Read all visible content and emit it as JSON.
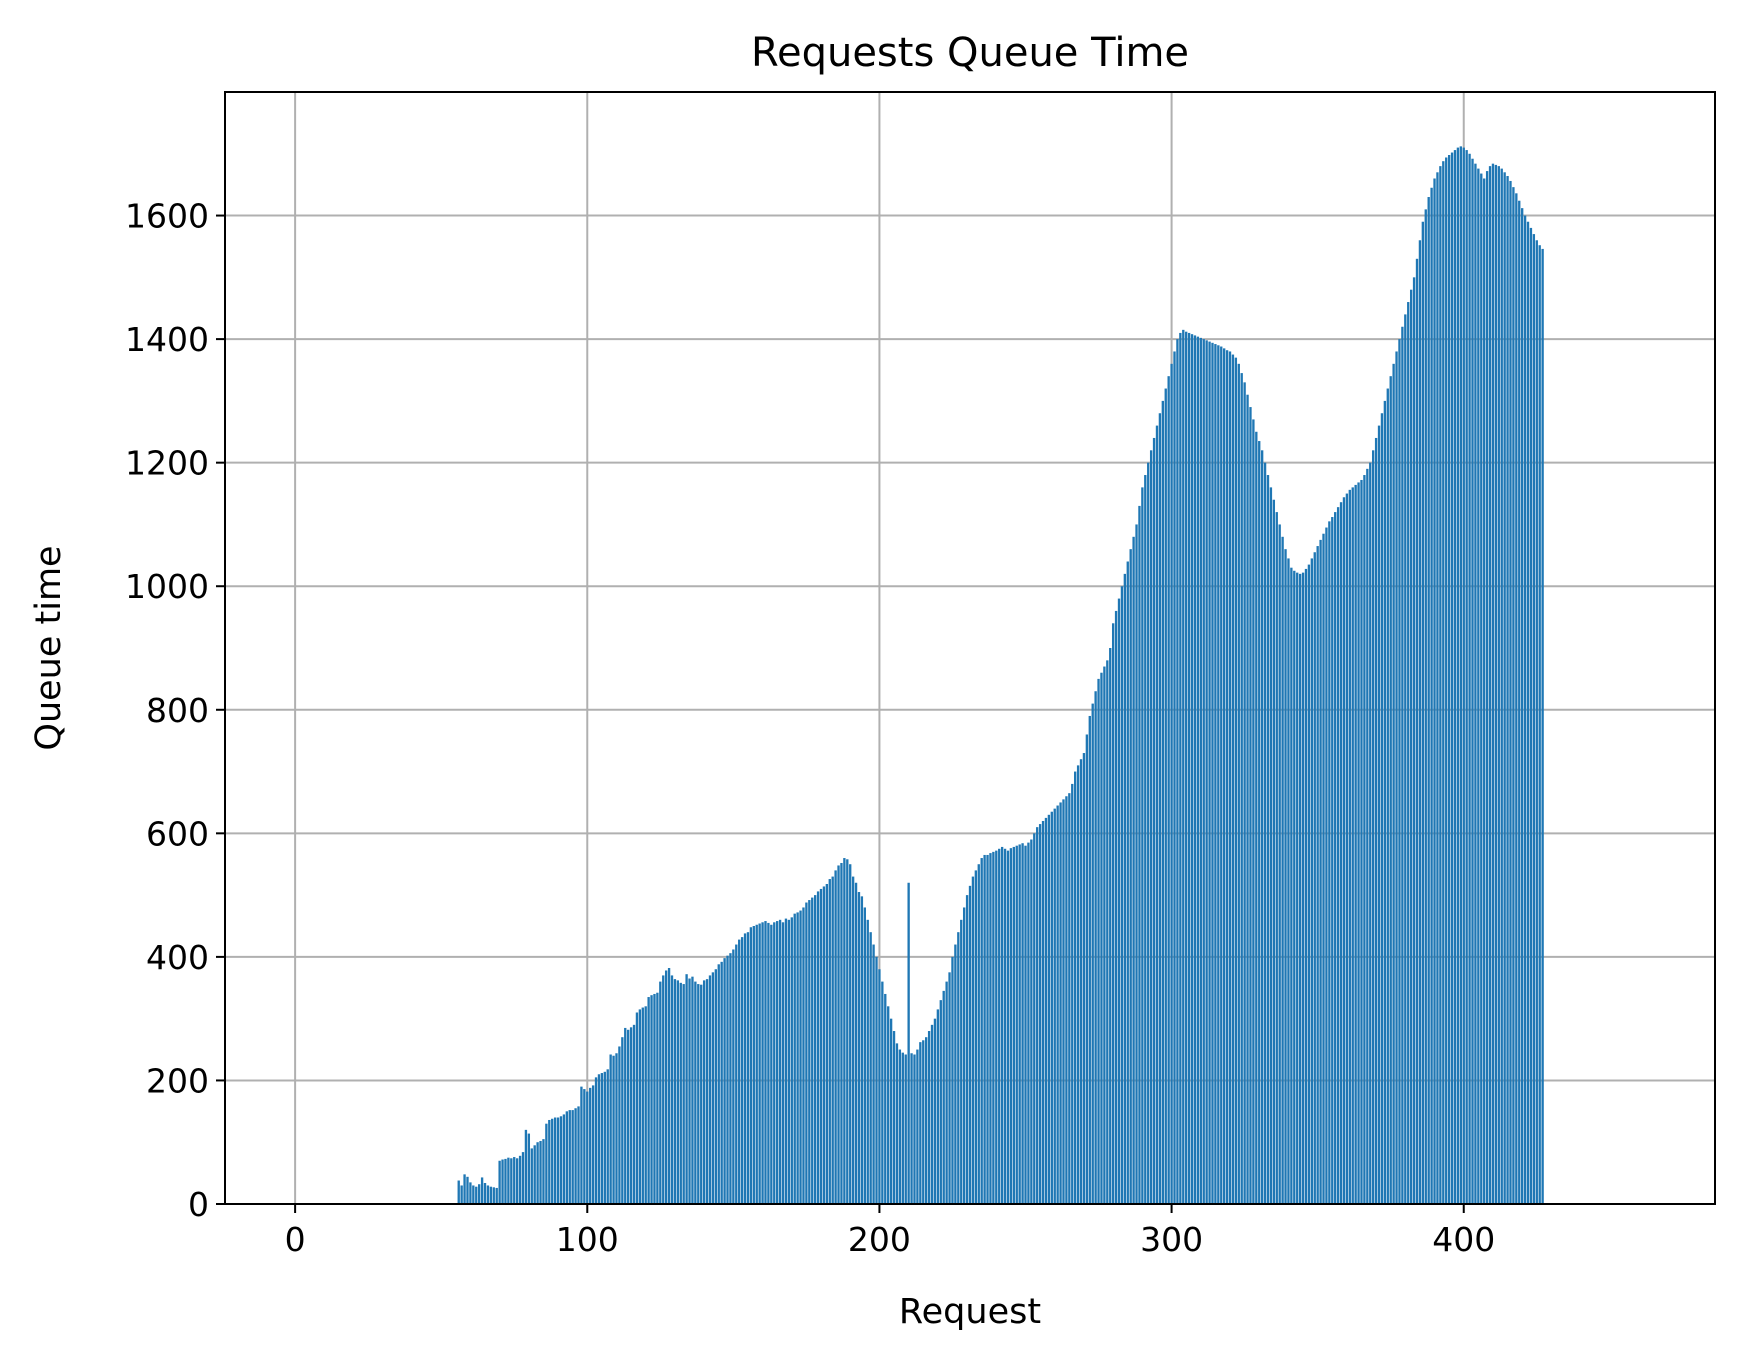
{
  "chart_data": {
    "type": "bar",
    "title": "Requests Queue Time",
    "xlabel": "Request",
    "ylabel": "Queue time",
    "xlim": [
      -24,
      486
    ],
    "ylim": [
      0,
      1800
    ],
    "xticks": [
      0,
      100,
      200,
      300,
      400
    ],
    "yticks": [
      0,
      200,
      400,
      600,
      800,
      1000,
      1200,
      1400,
      1600
    ],
    "grid": true,
    "color": "#1f77b4",
    "x_start": 0,
    "values": [
      0,
      0,
      0,
      0,
      0,
      0,
      0,
      0,
      0,
      0,
      0,
      0,
      0,
      0,
      0,
      0,
      0,
      0,
      0,
      0,
      0,
      0,
      0,
      0,
      0,
      0,
      0,
      0,
      0,
      0,
      0,
      0,
      0,
      0,
      0,
      0,
      0,
      0,
      0,
      0,
      0,
      0,
      0,
      0,
      0,
      0,
      0,
      0,
      0,
      0,
      0,
      0,
      0,
      0,
      0,
      0,
      38,
      30,
      48,
      44,
      35,
      30,
      28,
      32,
      43,
      34,
      30,
      28,
      27,
      26,
      70,
      72,
      73,
      75,
      74,
      76,
      74,
      78,
      84,
      120,
      114,
      90,
      95,
      100,
      102,
      105,
      130,
      136,
      138,
      140,
      140,
      142,
      145,
      150,
      152,
      152,
      155,
      158,
      190,
      186,
      182,
      188,
      192,
      205,
      210,
      212,
      214,
      218,
      242,
      240,
      244,
      255,
      270,
      285,
      282,
      286,
      290,
      310,
      315,
      318,
      320,
      335,
      338,
      340,
      342,
      360,
      370,
      378,
      382,
      370,
      364,
      362,
      358,
      356,
      372,
      365,
      368,
      360,
      356,
      355,
      362,
      364,
      370,
      375,
      380,
      388,
      392,
      398,
      402,
      406,
      412,
      420,
      428,
      432,
      438,
      440,
      448,
      450,
      452,
      454,
      456,
      458,
      455,
      452,
      456,
      458,
      460,
      456,
      462,
      460,
      464,
      470,
      472,
      475,
      480,
      488,
      492,
      496,
      500,
      506,
      510,
      514,
      518,
      526,
      530,
      540,
      548,
      552,
      560,
      558,
      550,
      530,
      520,
      505,
      498,
      480,
      460,
      440,
      420,
      400,
      380,
      360,
      340,
      320,
      300,
      280,
      260,
      250,
      245,
      242,
      520,
      244,
      242,
      250,
      262,
      265,
      270,
      280,
      290,
      300,
      315,
      330,
      345,
      360,
      375,
      400,
      420,
      440,
      460,
      480,
      500,
      515,
      530,
      540,
      550,
      560,
      565,
      565,
      568,
      570,
      572,
      575,
      578,
      575,
      572,
      576,
      578,
      580,
      582,
      584,
      580,
      585,
      590,
      600,
      610,
      615,
      620,
      625,
      630,
      635,
      640,
      645,
      650,
      655,
      660,
      665,
      680,
      700,
      710,
      720,
      730,
      760,
      790,
      810,
      830,
      850,
      860,
      870,
      880,
      900,
      940,
      960,
      980,
      1000,
      1020,
      1040,
      1060,
      1080,
      1100,
      1130,
      1160,
      1180,
      1200,
      1220,
      1240,
      1260,
      1280,
      1300,
      1320,
      1340,
      1360,
      1380,
      1400,
      1410,
      1415,
      1412,
      1410,
      1408,
      1406,
      1404,
      1402,
      1400,
      1398,
      1396,
      1394,
      1392,
      1390,
      1388,
      1385,
      1382,
      1380,
      1375,
      1370,
      1360,
      1345,
      1330,
      1310,
      1290,
      1270,
      1250,
      1235,
      1220,
      1200,
      1180,
      1160,
      1140,
      1120,
      1100,
      1080,
      1060,
      1045,
      1030,
      1025,
      1022,
      1020,
      1022,
      1028,
      1035,
      1045,
      1055,
      1065,
      1075,
      1085,
      1095,
      1105,
      1112,
      1120,
      1128,
      1136,
      1144,
      1150,
      1156,
      1160,
      1164,
      1168,
      1172,
      1180,
      1190,
      1200,
      1220,
      1240,
      1260,
      1280,
      1300,
      1320,
      1340,
      1360,
      1380,
      1400,
      1420,
      1440,
      1460,
      1480,
      1500,
      1530,
      1560,
      1590,
      1610,
      1630,
      1645,
      1660,
      1670,
      1680,
      1688,
      1694,
      1698,
      1702,
      1706,
      1710,
      1712,
      1710,
      1706,
      1700,
      1692,
      1684,
      1676,
      1668,
      1660,
      1672,
      1680,
      1684,
      1682,
      1680,
      1676,
      1670,
      1664,
      1656,
      1646,
      1636,
      1624,
      1612,
      1600,
      1590,
      1580,
      1570,
      1560,
      1552,
      1546
    ]
  }
}
